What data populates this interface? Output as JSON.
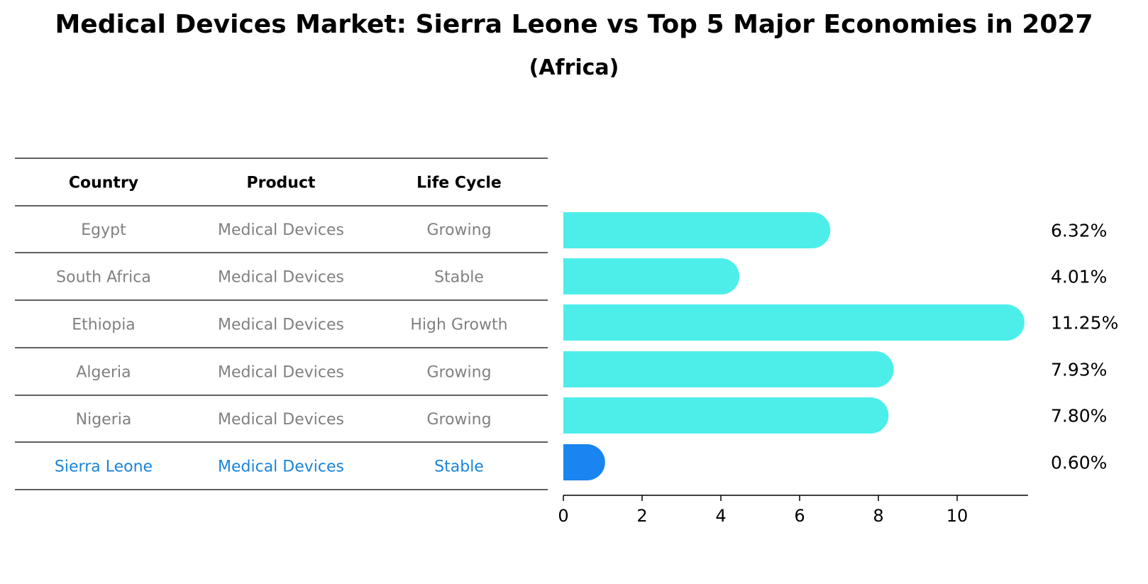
{
  "chart_data": {
    "type": "bar",
    "orientation": "horizontal",
    "title": "Medical Devices Market: Sierra Leone vs Top 5 Major Economies in 2027",
    "subtitle": "(Africa)",
    "table_headers": [
      "Country",
      "Product",
      "Life Cycle"
    ],
    "rows": [
      {
        "country": "Egypt",
        "product": "Medical Devices",
        "life_cycle": "Growing",
        "value": 6.32,
        "label": "6.32%",
        "highlight": false
      },
      {
        "country": "South Africa",
        "product": "Medical Devices",
        "life_cycle": "Stable",
        "value": 4.01,
        "label": "4.01%",
        "highlight": false
      },
      {
        "country": "Ethiopia",
        "product": "Medical Devices",
        "life_cycle": "High Growth",
        "value": 11.25,
        "label": "11.25%",
        "highlight": false
      },
      {
        "country": "Algeria",
        "product": "Medical Devices",
        "life_cycle": "Growing",
        "value": 7.93,
        "label": "7.93%",
        "highlight": false
      },
      {
        "country": "Nigeria",
        "product": "Medical Devices",
        "life_cycle": "Growing",
        "value": 7.8,
        "label": "7.80%",
        "highlight": false
      },
      {
        "country": "Sierra Leone",
        "product": "Medical Devices",
        "life_cycle": "Stable",
        "value": 0.6,
        "label": "0.60%",
        "highlight": true
      }
    ],
    "x_ticks": [
      0,
      2,
      4,
      6,
      8,
      10
    ],
    "xlim": [
      0,
      11.8
    ],
    "xlabel": "",
    "ylabel": "",
    "grid": false,
    "colors": {
      "bar": "#4DEEEA",
      "highlight_bar": "#1A84F0",
      "table_text": "#808080",
      "highlight_text": "#1A84D8",
      "rule": "#000000"
    }
  }
}
